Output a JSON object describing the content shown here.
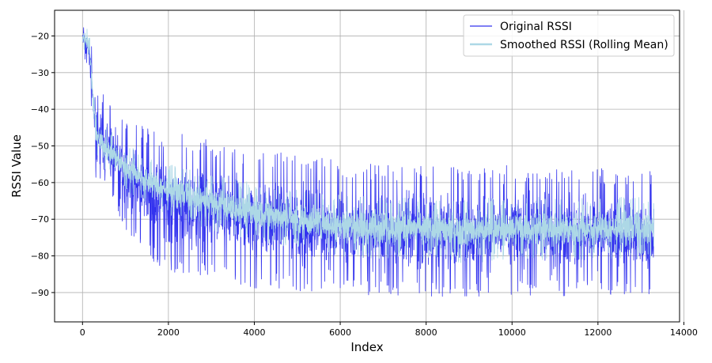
{
  "chart_data": {
    "type": "line",
    "title": "",
    "xlabel": "Index",
    "ylabel": "RSSI Value",
    "xlim": [
      -650,
      13900
    ],
    "ylim": [
      -98,
      -13
    ],
    "xticks": [
      0,
      2000,
      4000,
      6000,
      8000,
      10000,
      12000,
      14000
    ],
    "yticks": [
      -20,
      -30,
      -40,
      -50,
      -60,
      -70,
      -80,
      -90
    ],
    "grid": true,
    "legend": {
      "placement": "top-right"
    },
    "colors": {
      "original": "#3333ee",
      "smoothed": "#add8e6"
    },
    "series": [
      {
        "name": "Original RSSI",
        "x": [
          0,
          150,
          320,
          500,
          1000,
          1500,
          2000,
          3000,
          4000,
          5000,
          6000,
          7000,
          8000,
          9000,
          10000,
          11000,
          12000,
          13300
        ],
        "upper": [
          -17,
          -17,
          -33,
          -36,
          -42,
          -45,
          -46,
          -48,
          -51,
          -52,
          -54,
          -55,
          -55,
          -56,
          -55,
          -56,
          -56,
          -57
        ],
        "lower": [
          -24,
          -30,
          -61,
          -62,
          -73,
          -80,
          -85,
          -87,
          -89,
          -90,
          -91,
          -91,
          -91,
          -92,
          -91,
          -91,
          -91,
          -91
        ]
      },
      {
        "name": "Smoothed RSSI (Rolling Mean)",
        "x": [
          0,
          150,
          320,
          500,
          1000,
          1500,
          2000,
          3000,
          4000,
          5000,
          6000,
          7000,
          8000,
          9000,
          10000,
          11000,
          12000,
          13300
        ],
        "upper": [
          -17,
          -18,
          -42,
          -44,
          -49,
          -53,
          -55,
          -58,
          -60,
          -62,
          -63,
          -64,
          -64,
          -64,
          -64,
          -64,
          -64,
          -64
        ],
        "lower": [
          -23,
          -26,
          -52,
          -56,
          -62,
          -66,
          -69,
          -73,
          -76,
          -78,
          -80,
          -81,
          -81,
          -82,
          -81,
          -81,
          -81,
          -81
        ]
      }
    ]
  }
}
